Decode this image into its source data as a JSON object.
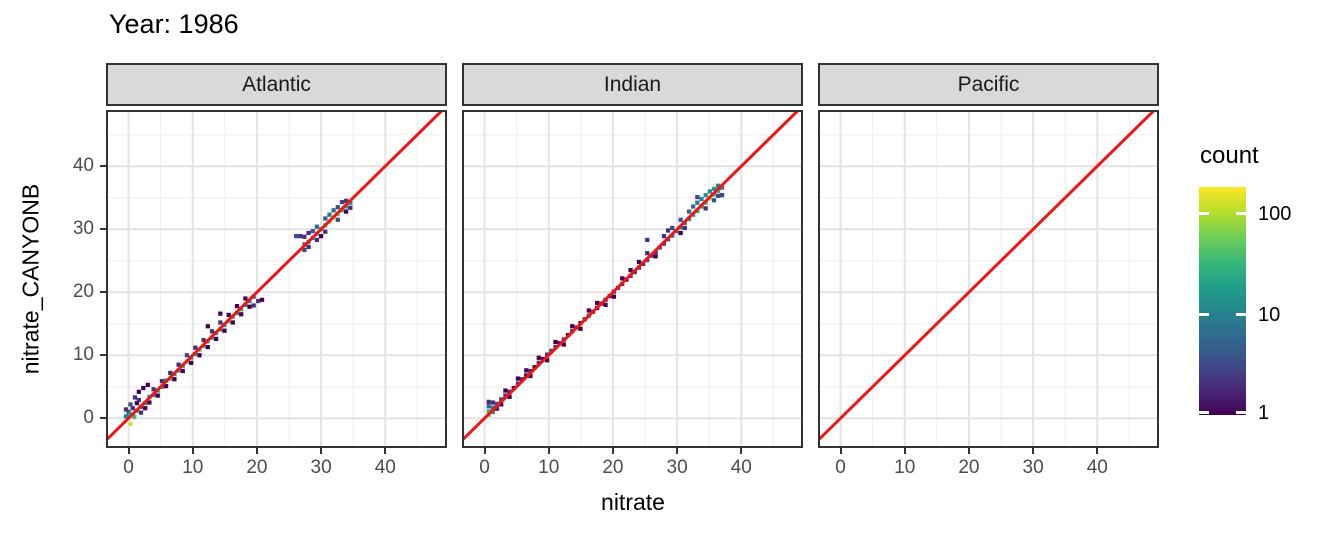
{
  "header": {
    "title": "Year: 1986"
  },
  "chart_data": {
    "type": "heatmap",
    "subtype": "geom_bin2d faceted scatter-density with y=x reference line",
    "x": {
      "title": "nitrate",
      "lim": [
        -3.2,
        49.3
      ],
      "major_ticks": [
        0,
        10,
        20,
        30,
        40
      ],
      "minor_ticks": [
        5,
        15,
        25,
        35,
        45
      ]
    },
    "y": {
      "title": "nitrate_CANYONB",
      "lim": [
        -4.4,
        48.6
      ],
      "major_ticks": [
        0,
        10,
        20,
        30,
        40
      ],
      "minor_ticks": [
        5,
        15,
        25,
        35,
        45
      ]
    },
    "abline": {
      "slope": 1,
      "intercept": 0,
      "color": "#f01414",
      "width": 3
    },
    "style": {
      "grid_major": "#e3e3e3",
      "grid_minor": "#f0f0f0",
      "panel_border": "#333333",
      "strip_bg": "#d9d9d9",
      "tick_label_color": "#4d4d4d",
      "tick_mark_color": "#333333",
      "bin_width_units": 0.66
    },
    "legend": {
      "title": "count",
      "scale": "log10",
      "scale_min": 1,
      "scale_max": 180,
      "ticks": [
        {
          "label": "100",
          "value": 100
        },
        {
          "label": "10",
          "value": 10
        },
        {
          "label": "1",
          "value": 1
        }
      ],
      "viridis": [
        "#440154",
        "#482878",
        "#3e4a89",
        "#31688e",
        "#26828e",
        "#1f9e89",
        "#35b779",
        "#6ece58",
        "#b5de2b",
        "#fde725"
      ]
    },
    "panels": [
      {
        "label": "Atlantic",
        "bins": [
          [
            0.0,
            0.3,
            12
          ],
          [
            0.65,
            0.5,
            8
          ],
          [
            1.3,
            1.2,
            15
          ],
          [
            1.95,
            1.8,
            6
          ],
          [
            2.6,
            2.4,
            10
          ],
          [
            3.25,
            3.4,
            18
          ],
          [
            3.9,
            3.7,
            9
          ],
          [
            4.55,
            4.4,
            22
          ],
          [
            5.2,
            5.0,
            14
          ],
          [
            5.85,
            6.0,
            28
          ],
          [
            6.5,
            6.3,
            35
          ],
          [
            7.15,
            7.0,
            20
          ],
          [
            7.8,
            7.6,
            16
          ],
          [
            8.45,
            8.3,
            30
          ],
          [
            9.1,
            9.0,
            42
          ],
          [
            9.75,
            9.6,
            25
          ],
          [
            10.4,
            10.2,
            18
          ],
          [
            11.05,
            10.9,
            33
          ],
          [
            11.7,
            11.5,
            22
          ],
          [
            12.35,
            12.2,
            40
          ],
          [
            13.0,
            12.8,
            15
          ],
          [
            13.65,
            13.5,
            27
          ],
          [
            14.3,
            14.1,
            12
          ],
          [
            14.95,
            14.8,
            24
          ],
          [
            15.6,
            15.4,
            45
          ],
          [
            16.25,
            16.1,
            30
          ],
          [
            16.9,
            16.7,
            18
          ],
          [
            17.55,
            17.3,
            26
          ],
          [
            18.2,
            18.0,
            14
          ],
          [
            18.85,
            18.6,
            9
          ],
          [
            0.0,
            1.0,
            3
          ],
          [
            0.65,
            1.6,
            2
          ],
          [
            1.3,
            2.4,
            1
          ],
          [
            1.95,
            0.9,
            2
          ],
          [
            2.6,
            1.6,
            1
          ],
          [
            3.25,
            2.5,
            1
          ],
          [
            3.9,
            4.6,
            2
          ],
          [
            4.55,
            3.6,
            1
          ],
          [
            5.2,
            5.9,
            2
          ],
          [
            5.85,
            5.1,
            1
          ],
          [
            6.5,
            7.2,
            2
          ],
          [
            7.15,
            6.2,
            1
          ],
          [
            7.8,
            8.5,
            2
          ],
          [
            8.45,
            7.5,
            1
          ],
          [
            9.1,
            10.0,
            3
          ],
          [
            9.75,
            8.8,
            1
          ],
          [
            10.4,
            11.2,
            2
          ],
          [
            11.05,
            10.0,
            1
          ],
          [
            11.7,
            12.4,
            2
          ],
          [
            12.35,
            11.3,
            1
          ],
          [
            13.0,
            13.8,
            2
          ],
          [
            13.65,
            12.6,
            1
          ],
          [
            14.3,
            15.2,
            2
          ],
          [
            14.95,
            13.9,
            1
          ],
          [
            15.6,
            16.4,
            1
          ],
          [
            16.25,
            15.2,
            1
          ],
          [
            16.9,
            17.8,
            1
          ],
          [
            17.55,
            16.5,
            1
          ],
          [
            18.2,
            19.0,
            1
          ],
          [
            18.85,
            17.7,
            1
          ],
          [
            0.3,
            -0.9,
            130
          ],
          [
            0.2,
            0.6,
            18
          ],
          [
            0.9,
            0.2,
            40
          ],
          [
            1.0,
            3.3,
            2
          ],
          [
            1.6,
            4.2,
            1
          ],
          [
            2.3,
            4.8,
            1
          ],
          [
            3.0,
            5.3,
            1
          ],
          [
            -0.4,
            0.3,
            9
          ],
          [
            -0.4,
            1.4,
            2
          ],
          [
            0.3,
            2.2,
            4
          ],
          [
            1.6,
            2.9,
            2
          ],
          [
            19.5,
            19.3,
            6
          ],
          [
            20.2,
            18.6,
            2
          ],
          [
            20.8,
            18.8,
            1
          ],
          [
            19.5,
            17.9,
            2
          ],
          [
            14.3,
            16.6,
            1
          ],
          [
            12.35,
            14.6,
            1
          ],
          [
            27.4,
            27.6,
            10
          ],
          [
            28.05,
            28.0,
            16
          ],
          [
            28.7,
            28.6,
            25
          ],
          [
            29.35,
            29.3,
            35
          ],
          [
            30.0,
            30.0,
            28
          ],
          [
            30.65,
            30.6,
            45
          ],
          [
            31.3,
            31.2,
            60
          ],
          [
            31.95,
            31.9,
            115
          ],
          [
            32.6,
            32.4,
            55
          ],
          [
            33.25,
            33.0,
            30
          ],
          [
            33.9,
            33.6,
            20
          ],
          [
            34.55,
            34.2,
            12
          ],
          [
            26.1,
            28.9,
            3
          ],
          [
            26.75,
            28.9,
            2
          ],
          [
            27.4,
            28.8,
            2
          ],
          [
            28.05,
            29.4,
            2
          ],
          [
            29.35,
            28.3,
            2
          ],
          [
            30.0,
            28.9,
            1
          ],
          [
            30.65,
            29.6,
            2
          ],
          [
            31.3,
            32.3,
            8
          ],
          [
            31.95,
            33.0,
            6
          ],
          [
            32.6,
            33.5,
            4
          ],
          [
            33.25,
            34.3,
            3
          ],
          [
            33.9,
            34.5,
            2
          ],
          [
            34.55,
            33.4,
            2
          ],
          [
            30.65,
            31.7,
            5
          ],
          [
            29.35,
            30.4,
            6
          ],
          [
            28.7,
            29.7,
            4
          ],
          [
            27.4,
            26.7,
            3
          ],
          [
            28.05,
            27.2,
            2
          ],
          [
            32.6,
            31.5,
            3
          ],
          [
            33.9,
            32.8,
            1
          ]
        ]
      },
      {
        "label": "Indian",
        "bins": [
          [
            0.65,
            1.1,
            30
          ],
          [
            1.3,
            1.7,
            8
          ],
          [
            1.95,
            2.3,
            4
          ],
          [
            2.6,
            3.0,
            3
          ],
          [
            3.25,
            3.6,
            2
          ],
          [
            3.9,
            4.2,
            2
          ],
          [
            4.55,
            4.8,
            1
          ],
          [
            5.2,
            5.5,
            2
          ],
          [
            5.85,
            6.2,
            2
          ],
          [
            6.5,
            6.8,
            1
          ],
          [
            7.15,
            7.5,
            2
          ],
          [
            7.8,
            8.1,
            1
          ],
          [
            8.45,
            8.8,
            2
          ],
          [
            9.1,
            9.4,
            1
          ],
          [
            9.75,
            10.1,
            2
          ],
          [
            10.4,
            10.7,
            3
          ],
          [
            11.05,
            11.3,
            2
          ],
          [
            11.7,
            11.9,
            1
          ],
          [
            12.35,
            12.5,
            2
          ],
          [
            13.0,
            13.2,
            1
          ],
          [
            13.65,
            13.8,
            2
          ],
          [
            14.3,
            14.4,
            2
          ],
          [
            14.95,
            15.1,
            1
          ],
          [
            15.6,
            15.7,
            2
          ],
          [
            16.25,
            16.3,
            3
          ],
          [
            16.9,
            16.9,
            2
          ],
          [
            17.55,
            17.5,
            1
          ],
          [
            18.2,
            18.2,
            2
          ],
          [
            18.85,
            18.8,
            2
          ],
          [
            19.5,
            19.4,
            1
          ],
          [
            20.15,
            20.1,
            2
          ],
          [
            20.8,
            20.7,
            3
          ],
          [
            21.45,
            21.3,
            2
          ],
          [
            22.1,
            22.0,
            1
          ],
          [
            22.75,
            22.6,
            2
          ],
          [
            23.4,
            23.2,
            2
          ],
          [
            24.05,
            23.9,
            3
          ],
          [
            24.7,
            24.5,
            2
          ],
          [
            25.35,
            25.1,
            4
          ],
          [
            26.0,
            25.8,
            3
          ],
          [
            26.65,
            26.4,
            2
          ],
          [
            27.3,
            27.1,
            4
          ],
          [
            27.95,
            27.7,
            3
          ],
          [
            28.6,
            28.4,
            5
          ],
          [
            29.25,
            29.0,
            6
          ],
          [
            29.9,
            29.7,
            8
          ],
          [
            30.55,
            30.3,
            10
          ],
          [
            31.2,
            31.0,
            12
          ],
          [
            31.85,
            31.6,
            15
          ],
          [
            32.5,
            32.3,
            18
          ],
          [
            33.15,
            32.9,
            22
          ],
          [
            33.8,
            33.6,
            30
          ],
          [
            34.45,
            34.2,
            40
          ],
          [
            35.1,
            34.9,
            90
          ],
          [
            35.75,
            35.5,
            35
          ],
          [
            36.4,
            36.1,
            25
          ],
          [
            0.65,
            0.55,
            60
          ],
          [
            0.65,
            1.9,
            5
          ],
          [
            0.65,
            2.6,
            2
          ],
          [
            1.3,
            1.0,
            12
          ],
          [
            1.3,
            2.5,
            2
          ],
          [
            1.95,
            1.5,
            2
          ],
          [
            2.6,
            2.2,
            1
          ],
          [
            3.25,
            4.4,
            1
          ],
          [
            3.9,
            3.4,
            1
          ],
          [
            5.2,
            6.3,
            1
          ],
          [
            6.5,
            7.6,
            1
          ],
          [
            7.15,
            6.7,
            1
          ],
          [
            8.45,
            9.6,
            1
          ],
          [
            9.75,
            9.2,
            1
          ],
          [
            11.05,
            12.1,
            1
          ],
          [
            12.35,
            11.7,
            1
          ],
          [
            13.65,
            14.6,
            1
          ],
          [
            14.95,
            14.2,
            1
          ],
          [
            16.25,
            17.1,
            1
          ],
          [
            17.55,
            18.3,
            1
          ],
          [
            18.85,
            18.0,
            1
          ],
          [
            20.15,
            19.3,
            1
          ],
          [
            21.45,
            22.2,
            1
          ],
          [
            22.75,
            23.5,
            1
          ],
          [
            24.05,
            24.8,
            1
          ],
          [
            25.35,
            26.2,
            2
          ],
          [
            25.35,
            28.3,
            2
          ],
          [
            26.65,
            25.7,
            1
          ],
          [
            27.95,
            28.9,
            2
          ],
          [
            29.25,
            30.2,
            3
          ],
          [
            30.55,
            31.5,
            4
          ],
          [
            31.2,
            30.2,
            2
          ],
          [
            31.85,
            32.8,
            5
          ],
          [
            32.5,
            33.6,
            6
          ],
          [
            33.15,
            34.2,
            8
          ],
          [
            33.8,
            34.8,
            10
          ],
          [
            34.45,
            35.4,
            15
          ],
          [
            35.1,
            36.0,
            12
          ],
          [
            35.75,
            36.4,
            18
          ],
          [
            36.4,
            36.9,
            10
          ],
          [
            37.0,
            36.6,
            8
          ],
          [
            37.0,
            35.4,
            3
          ],
          [
            33.15,
            35.1,
            3
          ],
          [
            34.45,
            33.3,
            2
          ],
          [
            35.75,
            34.6,
            4
          ],
          [
            36.4,
            35.3,
            3
          ],
          [
            28.6,
            29.8,
            2
          ],
          [
            30.55,
            29.4,
            1
          ]
        ]
      },
      {
        "label": "Pacific",
        "bins": []
      }
    ]
  }
}
